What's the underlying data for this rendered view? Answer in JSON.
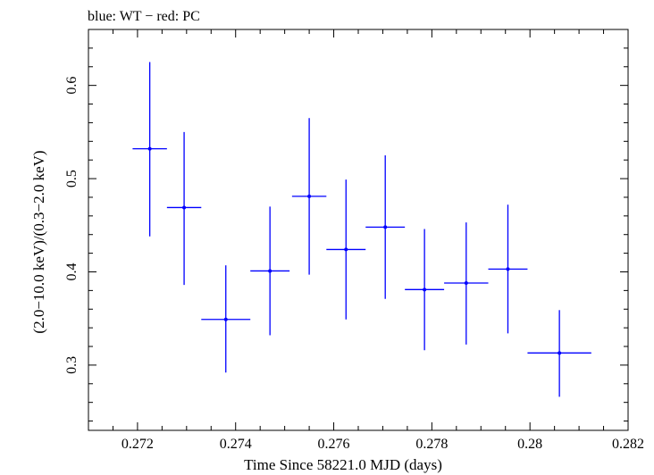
{
  "chart_data": {
    "type": "scatter",
    "title": "blue: WT − red: PC",
    "xlabel": "Time Since 58221.0 MJD (days)",
    "ylabel": "(2.0−10.0 keV)/(0.3−2.0 keV)",
    "xlim": [
      0.271,
      0.282
    ],
    "ylim": [
      0.23,
      0.66
    ],
    "xticks": [
      0.272,
      0.274,
      0.276,
      0.278,
      0.28,
      0.282
    ],
    "xtick_labels": [
      "0.272",
      "0.274",
      "0.276",
      "0.278",
      "0.28",
      "0.282"
    ],
    "yticks": [
      0.3,
      0.4,
      0.5,
      0.6
    ],
    "ytick_labels": [
      "0.3",
      "0.4",
      "0.5",
      "0.6"
    ],
    "grid": false,
    "series": [
      {
        "color": "#0000ff",
        "points": [
          {
            "x": 0.27225,
            "y": 0.532,
            "xerr": 0.00035,
            "ylo": 0.438,
            "yhi": 0.625
          },
          {
            "x": 0.27295,
            "y": 0.469,
            "xerr": 0.00035,
            "ylo": 0.386,
            "yhi": 0.55
          },
          {
            "x": 0.2738,
            "y": 0.349,
            "xerr": 0.0005,
            "ylo": 0.292,
            "yhi": 0.407
          },
          {
            "x": 0.2747,
            "y": 0.401,
            "xerr": 0.0004,
            "ylo": 0.332,
            "yhi": 0.47
          },
          {
            "x": 0.2755,
            "y": 0.481,
            "xerr": 0.00035,
            "ylo": 0.397,
            "yhi": 0.565
          },
          {
            "x": 0.27625,
            "y": 0.424,
            "xerr": 0.0004,
            "ylo": 0.349,
            "yhi": 0.499
          },
          {
            "x": 0.27705,
            "y": 0.448,
            "xerr": 0.0004,
            "ylo": 0.371,
            "yhi": 0.525
          },
          {
            "x": 0.27785,
            "y": 0.381,
            "xerr": 0.0004,
            "ylo": 0.316,
            "yhi": 0.446
          },
          {
            "x": 0.2787,
            "y": 0.388,
            "xerr": 0.00045,
            "ylo": 0.322,
            "yhi": 0.453
          },
          {
            "x": 0.27955,
            "y": 0.403,
            "xerr": 0.0004,
            "ylo": 0.334,
            "yhi": 0.472
          },
          {
            "x": 0.2806,
            "y": 0.313,
            "xerr": 0.00065,
            "ylo": 0.266,
            "yhi": 0.359
          }
        ]
      }
    ]
  }
}
